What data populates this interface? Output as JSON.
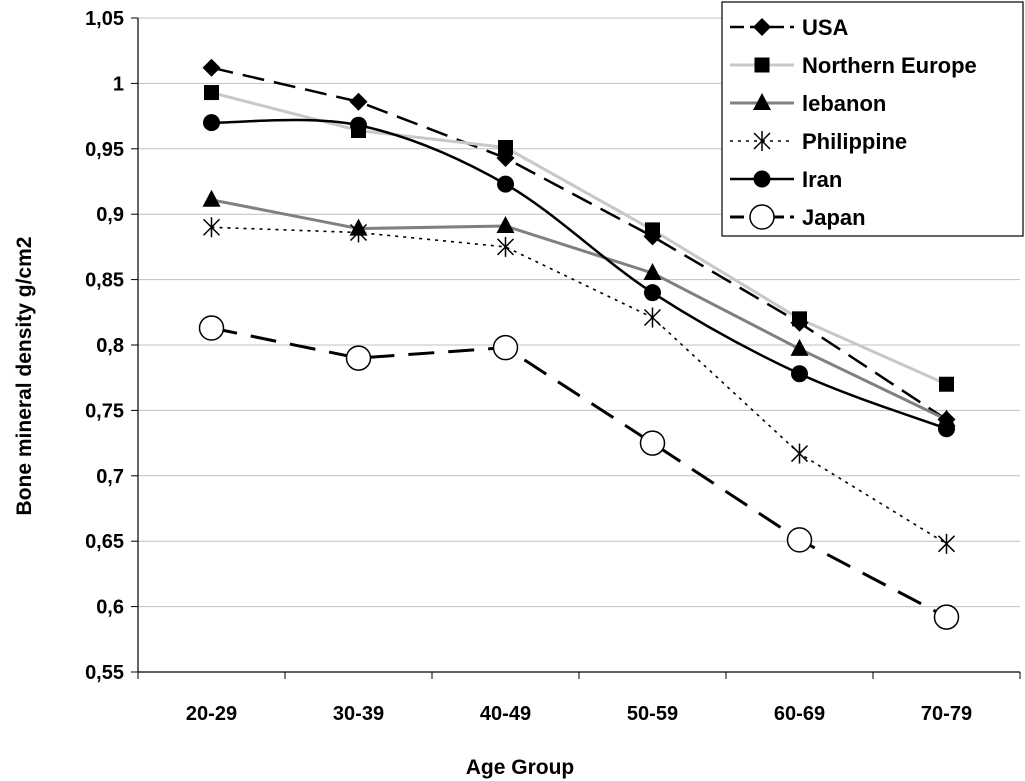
{
  "chart_data": {
    "type": "line",
    "title": "",
    "xlabel": "Age Group",
    "ylabel": "Bone mineral density g/cm2",
    "categories": [
      "20-29",
      "30-39",
      "40-49",
      "50-59",
      "60-69",
      "70-79"
    ],
    "ylim": [
      0.55,
      1.05
    ],
    "ytick_labels": [
      "0,55",
      "0,6",
      "0,65",
      "0,7",
      "0,75",
      "0,8",
      "0,85",
      "0,9",
      "0,95",
      "1",
      "1,05"
    ],
    "ytick_values": [
      0.55,
      0.6,
      0.65,
      0.7,
      0.75,
      0.8,
      0.85,
      0.9,
      0.95,
      1.0,
      1.05
    ],
    "grid": "horizontal",
    "legend_position": "top-right",
    "series": [
      {
        "name": "USA",
        "values": [
          1.012,
          0.986,
          0.943,
          0.883,
          0.817,
          0.743
        ],
        "color": "#000000",
        "line": "long-dash",
        "marker": "diamond-filled"
      },
      {
        "name": "Northern Europe",
        "values": [
          0.993,
          0.964,
          0.951,
          0.888,
          0.82,
          0.77
        ],
        "color": "#c8c8c8",
        "line": "solid",
        "marker": "square-filled-black"
      },
      {
        "name": "lebanon",
        "values": [
          0.911,
          0.889,
          0.891,
          0.855,
          0.797,
          0.743
        ],
        "color": "#808080",
        "line": "solid",
        "marker": "triangle-filled-black"
      },
      {
        "name": "Philippine",
        "values": [
          0.89,
          0.886,
          0.875,
          0.821,
          0.717,
          0.648
        ],
        "color": "#000000",
        "line": "dotted",
        "marker": "asterisk"
      },
      {
        "name": "Iran",
        "values": [
          0.97,
          0.968,
          0.923,
          0.84,
          0.778,
          0.736
        ],
        "color": "#000000",
        "line": "solid-smooth",
        "marker": "circle-filled"
      },
      {
        "name": "Japan",
        "values": [
          0.813,
          0.79,
          0.798,
          0.725,
          0.651,
          0.592
        ],
        "color": "#000000",
        "line": "long-dash-heavy",
        "marker": "circle-open"
      }
    ]
  }
}
